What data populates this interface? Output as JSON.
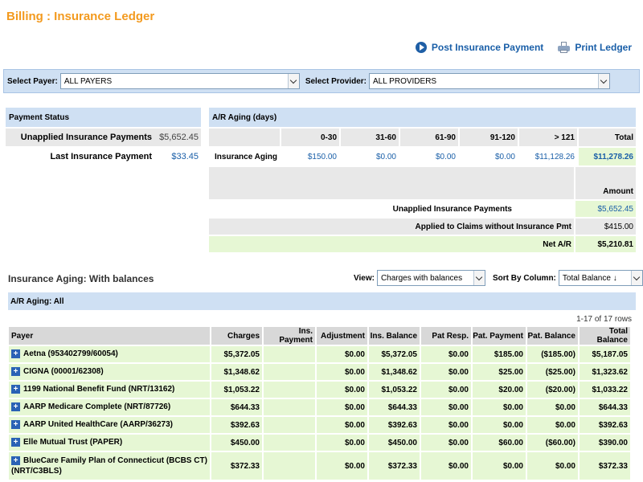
{
  "page": {
    "title": "Billing : Insurance Ledger"
  },
  "actions": {
    "post_payment": "Post Insurance Payment",
    "print_ledger": "Print Ledger"
  },
  "filters": {
    "payer_label": "Select Payer:",
    "payer_value": "ALL PAYERS",
    "provider_label": "Select Provider:",
    "provider_value": "ALL PROVIDERS"
  },
  "payment_status": {
    "title": "Payment Status",
    "rows": [
      {
        "label": "Unapplied Insurance Payments",
        "value": "$5,652.45"
      },
      {
        "label": "Last Insurance Payment",
        "value": "$33.45"
      }
    ]
  },
  "ar_aging": {
    "title": "A/R Aging (days)",
    "columns": [
      "0-30",
      "31-60",
      "61-90",
      "91-120",
      "> 121",
      "Total"
    ],
    "row_label": "Insurance Aging",
    "values": [
      "$150.00",
      "$0.00",
      "$0.00",
      "$0.00",
      "$11,128.26",
      "$11,278.26"
    ],
    "amount_header": "Amount",
    "summary": [
      {
        "label": "Unapplied Insurance Payments",
        "value": "$5,652.45"
      },
      {
        "label": "Applied to Claims without Insurance Pmt",
        "value": "$415.00"
      },
      {
        "label": "Net A/R",
        "value": "$5,210.81"
      }
    ]
  },
  "aging_section": {
    "title": "Insurance Aging: With balances",
    "view_label": "View:",
    "view_value": "Charges with balances",
    "sort_label": "Sort By Column:",
    "sort_value": "Total Balance ↓",
    "bar_title": "A/R Aging: All",
    "row_count": "1-17 of 17 rows",
    "columns": [
      "Payer",
      "Charges",
      "Ins. Payment",
      "Adjustment",
      "Ins. Balance",
      "Pat Resp.",
      "Pat. Payment",
      "Pat. Balance",
      "Total Balance"
    ],
    "rows": [
      [
        "Aetna (953402799/60054)",
        "$5,372.05",
        "",
        "$0.00",
        "$5,372.05",
        "$0.00",
        "$185.00",
        "($185.00)",
        "$5,187.05"
      ],
      [
        "CIGNA (00001/62308)",
        "$1,348.62",
        "",
        "$0.00",
        "$1,348.62",
        "$0.00",
        "$25.00",
        "($25.00)",
        "$1,323.62"
      ],
      [
        "1199 National Benefit Fund (NRT/13162)",
        "$1,053.22",
        "",
        "$0.00",
        "$1,053.22",
        "$0.00",
        "$20.00",
        "($20.00)",
        "$1,033.22"
      ],
      [
        "AARP Medicare Complete (NRT/87726)",
        "$644.33",
        "",
        "$0.00",
        "$644.33",
        "$0.00",
        "$0.00",
        "$0.00",
        "$644.33"
      ],
      [
        "AARP United HealthCare (AARP/36273)",
        "$392.63",
        "",
        "$0.00",
        "$392.63",
        "$0.00",
        "$0.00",
        "$0.00",
        "$392.63"
      ],
      [
        "Elle Mutual Trust (PAPER)",
        "$450.00",
        "",
        "$0.00",
        "$450.00",
        "$0.00",
        "$60.00",
        "($60.00)",
        "$390.00"
      ],
      [
        "BlueCare Family Plan of Connecticut (BCBS CT) (NRT/C3BLS)",
        "$372.33",
        "",
        "$0.00",
        "$372.33",
        "$0.00",
        "$0.00",
        "$0.00",
        "$372.33"
      ]
    ]
  }
}
